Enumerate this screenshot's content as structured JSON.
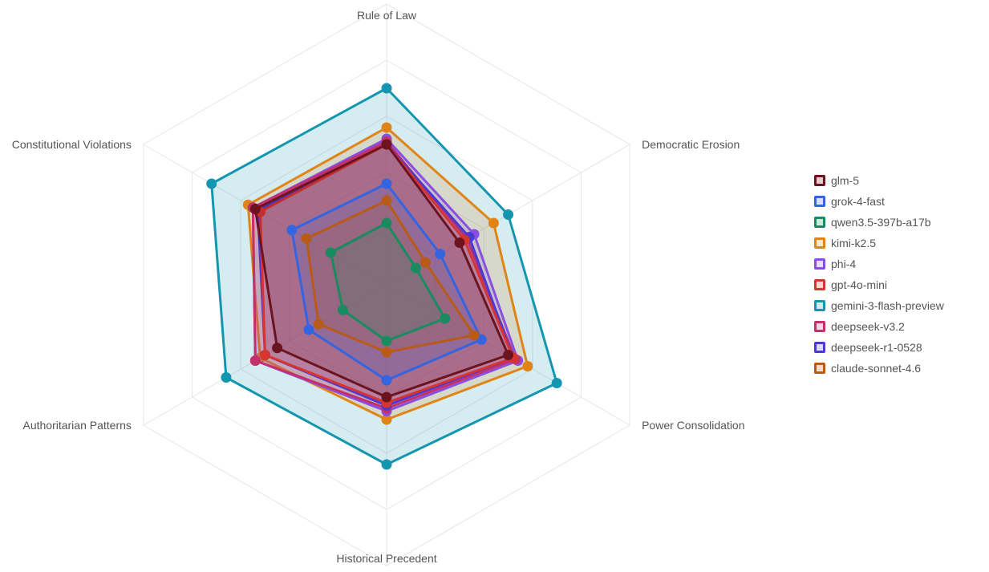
{
  "chart_data": {
    "type": "radar",
    "axes": [
      "Rule of Law",
      "Democratic Erosion",
      "Power Consolidation",
      "Historical Precedent",
      "Authoritarian Patterns",
      "Constitutional Violations"
    ],
    "rlim": [
      0,
      10
    ],
    "grid": true,
    "legend_position": "right",
    "series": [
      {
        "name": "glm-5",
        "color": "#6b1420",
        "values": [
          5.0,
          3.0,
          5.0,
          4.0,
          4.5,
          5.4
        ]
      },
      {
        "name": "grok-4-fast",
        "color": "#3464e0",
        "values": [
          3.6,
          2.2,
          3.9,
          3.4,
          3.2,
          3.9
        ]
      },
      {
        "name": "qwen3.5-397b-a17b",
        "color": "#1a8a60",
        "values": [
          2.2,
          1.2,
          2.4,
          2.0,
          1.8,
          2.3
        ]
      },
      {
        "name": "kimi-k2.5",
        "color": "#e08418",
        "values": [
          5.6,
          4.4,
          5.8,
          4.8,
          5.2,
          5.7
        ]
      },
      {
        "name": "phi-4",
        "color": "#8a4fe0",
        "values": [
          5.2,
          3.6,
          5.4,
          4.5,
          5.4,
          5.5
        ]
      },
      {
        "name": "gpt-4o-mini",
        "color": "#d8342f",
        "values": [
          5.0,
          3.2,
          5.2,
          4.2,
          5.0,
          5.2
        ]
      },
      {
        "name": "gemini-3-flash-preview",
        "color": "#1596b0",
        "values": [
          7.0,
          5.0,
          7.0,
          6.4,
          6.6,
          7.2
        ]
      },
      {
        "name": "deepseek-v3.2",
        "color": "#c4306a",
        "values": [
          5.1,
          3.3,
          5.3,
          4.4,
          5.4,
          5.5
        ]
      },
      {
        "name": "deepseek-r1-0528",
        "color": "#4a3ad0",
        "values": [
          5.0,
          3.4,
          5.2,
          4.3,
          5.0,
          5.3
        ]
      },
      {
        "name": "claude-sonnet-4.6",
        "color": "#b85a18",
        "values": [
          3.0,
          1.6,
          3.6,
          2.4,
          2.8,
          3.3
        ]
      }
    ]
  }
}
